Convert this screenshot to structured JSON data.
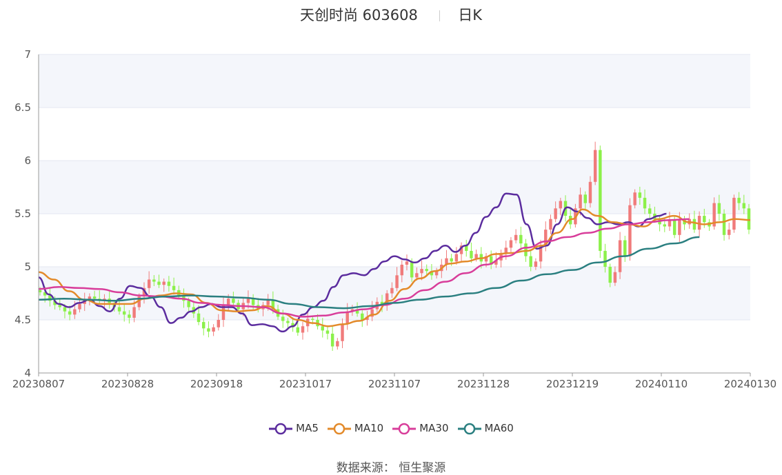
{
  "header": {
    "name": "天创时尚 603608",
    "period": "日K"
  },
  "legend": [
    {
      "name": "MA5",
      "color": "#5b2c9e"
    },
    {
      "name": "MA10",
      "color": "#e38a2a"
    },
    {
      "name": "MA30",
      "color": "#d83d9a"
    },
    {
      "name": "MA60",
      "color": "#2a7f80"
    }
  ],
  "source": {
    "label": "数据来源：",
    "value": "恒生聚源"
  },
  "chart_data": {
    "type": "candlestick",
    "y_ticks": [
      "4",
      "4.5",
      "5",
      "5.5",
      "6",
      "6.5",
      "7"
    ],
    "ylim": [
      4,
      7
    ],
    "x_ticks": [
      "20230807",
      "20230828",
      "20230918",
      "20231017",
      "20231107",
      "20231128",
      "20231219",
      "20240110",
      "20240130"
    ],
    "grid": true,
    "legend_position": "bottom",
    "up_color": "#f07b7b",
    "down_color": "#8cf04a",
    "closes": [
      4.76,
      4.73,
      4.68,
      4.64,
      4.62,
      4.58,
      4.55,
      4.6,
      4.65,
      4.69,
      4.72,
      4.7,
      4.68,
      4.7,
      4.66,
      4.62,
      4.58,
      4.55,
      4.52,
      4.62,
      4.72,
      4.8,
      4.88,
      4.86,
      4.83,
      4.86,
      4.82,
      4.78,
      4.73,
      4.68,
      4.62,
      4.56,
      4.48,
      4.42,
      4.39,
      4.43,
      4.5,
      4.64,
      4.7,
      4.66,
      4.6,
      4.66,
      4.7,
      4.64,
      4.6,
      4.64,
      4.69,
      4.6,
      4.53,
      4.49,
      4.47,
      4.43,
      4.38,
      4.44,
      4.51,
      4.5,
      4.44,
      4.4,
      4.37,
      4.25,
      4.3,
      4.46,
      4.58,
      4.6,
      4.56,
      4.5,
      4.53,
      4.6,
      4.67,
      4.64,
      4.75,
      4.8,
      4.92,
      5.02,
      5.05,
      4.9,
      4.94,
      4.98,
      4.96,
      4.92,
      4.96,
      5.02,
      5.08,
      5.05,
      5.12,
      5.2,
      5.15,
      5.08,
      5.12,
      5.05,
      5.1,
      5.02,
      5.06,
      5.12,
      5.18,
      5.25,
      5.3,
      5.22,
      5.1,
      5.0,
      5.05,
      5.2,
      5.35,
      5.45,
      5.55,
      5.62,
      5.48,
      5.4,
      5.55,
      5.68,
      5.6,
      5.8,
      6.1,
      5.15,
      5.0,
      4.85,
      4.95,
      5.25,
      5.1,
      5.58,
      5.7,
      5.65,
      5.55,
      5.5,
      5.45,
      5.4,
      5.38,
      5.44,
      5.3,
      5.45,
      5.4,
      5.45,
      5.35,
      5.48,
      5.42,
      5.38,
      5.6,
      5.5,
      5.3,
      5.35,
      5.65,
      5.6,
      5.55,
      5.35
    ],
    "series": [
      {
        "name": "MA5",
        "values": [
          [
            0,
            4.9
          ],
          [
            4,
            4.74
          ],
          [
            8,
            4.65
          ],
          [
            12,
            4.62
          ],
          [
            16,
            4.66
          ],
          [
            20,
            4.69
          ],
          [
            24,
            4.63
          ],
          [
            28,
            4.58
          ],
          [
            32,
            4.7
          ],
          [
            36,
            4.82
          ],
          [
            40,
            4.8
          ],
          [
            44,
            4.72
          ],
          [
            48,
            4.62
          ],
          [
            52,
            4.47
          ],
          [
            56,
            4.52
          ],
          [
            60,
            4.58
          ],
          [
            64,
            4.62
          ],
          [
            68,
            4.65
          ],
          [
            72,
            4.62
          ],
          [
            76,
            4.62
          ],
          [
            80,
            4.56
          ],
          [
            84,
            4.45
          ],
          [
            88,
            4.46
          ],
          [
            92,
            4.44
          ],
          [
            96,
            4.39
          ],
          [
            100,
            4.44
          ],
          [
            104,
            4.55
          ],
          [
            108,
            4.62
          ],
          [
            112,
            4.68
          ],
          [
            116,
            4.81
          ],
          [
            120,
            4.92
          ],
          [
            124,
            4.94
          ],
          [
            128,
            4.92
          ],
          [
            132,
            4.98
          ],
          [
            136,
            5.05
          ],
          [
            140,
            5.1
          ],
          [
            144,
            5.07
          ],
          [
            148,
            5.04
          ],
          [
            152,
            5.08
          ],
          [
            156,
            5.15
          ],
          [
            160,
            5.2
          ],
          [
            164,
            5.14
          ],
          [
            168,
            5.2
          ],
          [
            172,
            5.32
          ],
          [
            176,
            5.47
          ],
          [
            180,
            5.56
          ],
          [
            184,
            5.69
          ],
          [
            188,
            5.68
          ],
          [
            192,
            5.4
          ],
          [
            196,
            5.17
          ],
          [
            200,
            5.2
          ],
          [
            204,
            5.4
          ],
          [
            208,
            5.56
          ],
          [
            212,
            5.52
          ],
          [
            216,
            5.46
          ],
          [
            220,
            5.4
          ],
          [
            224,
            5.42
          ],
          [
            228,
            5.4
          ],
          [
            232,
            5.42
          ],
          [
            236,
            5.38
          ],
          [
            240,
            5.45
          ],
          [
            244,
            5.48
          ],
          [
            247,
            5.5
          ]
        ]
      },
      {
        "name": "MA10",
        "values": [
          [
            0,
            4.95
          ],
          [
            6,
            4.88
          ],
          [
            12,
            4.77
          ],
          [
            18,
            4.69
          ],
          [
            24,
            4.65
          ],
          [
            30,
            4.65
          ],
          [
            36,
            4.65
          ],
          [
            42,
            4.7
          ],
          [
            48,
            4.73
          ],
          [
            54,
            4.75
          ],
          [
            60,
            4.74
          ],
          [
            66,
            4.66
          ],
          [
            72,
            4.59
          ],
          [
            78,
            4.58
          ],
          [
            84,
            4.59
          ],
          [
            90,
            4.63
          ],
          [
            96,
            4.56
          ],
          [
            102,
            4.5
          ],
          [
            108,
            4.47
          ],
          [
            114,
            4.44
          ],
          [
            120,
            4.46
          ],
          [
            126,
            4.49
          ],
          [
            132,
            4.55
          ],
          [
            138,
            4.68
          ],
          [
            144,
            4.79
          ],
          [
            150,
            4.89
          ],
          [
            156,
            4.96
          ],
          [
            162,
            5.03
          ],
          [
            168,
            5.05
          ],
          [
            174,
            5.08
          ],
          [
            180,
            5.12
          ],
          [
            186,
            5.13
          ],
          [
            192,
            5.15
          ],
          [
            198,
            5.2
          ],
          [
            204,
            5.32
          ],
          [
            210,
            5.45
          ],
          [
            214,
            5.54
          ],
          [
            220,
            5.48
          ],
          [
            226,
            5.42
          ],
          [
            232,
            5.4
          ],
          [
            238,
            5.38
          ],
          [
            244,
            5.45
          ],
          [
            250,
            5.48
          ],
          [
            256,
            5.42
          ],
          [
            262,
            5.4
          ],
          [
            268,
            5.42
          ],
          [
            274,
            5.45
          ],
          [
            280,
            5.44
          ]
        ]
      },
      {
        "name": "MA30",
        "values": [
          [
            0,
            4.79
          ],
          [
            8,
            4.81
          ],
          [
            16,
            4.8
          ],
          [
            24,
            4.79
          ],
          [
            32,
            4.76
          ],
          [
            40,
            4.73
          ],
          [
            48,
            4.72
          ],
          [
            56,
            4.7
          ],
          [
            64,
            4.66
          ],
          [
            72,
            4.64
          ],
          [
            80,
            4.63
          ],
          [
            88,
            4.62
          ],
          [
            96,
            4.56
          ],
          [
            104,
            4.53
          ],
          [
            112,
            4.54
          ],
          [
            120,
            4.57
          ],
          [
            128,
            4.6
          ],
          [
            136,
            4.64
          ],
          [
            144,
            4.7
          ],
          [
            152,
            4.78
          ],
          [
            160,
            4.86
          ],
          [
            168,
            4.94
          ],
          [
            176,
            5.02
          ],
          [
            184,
            5.1
          ],
          [
            192,
            5.18
          ],
          [
            200,
            5.24
          ],
          [
            208,
            5.28
          ],
          [
            216,
            5.32
          ],
          [
            224,
            5.36
          ],
          [
            232,
            5.4
          ],
          [
            240,
            5.42
          ],
          [
            248,
            5.44
          ],
          [
            256,
            5.45
          ]
        ]
      },
      {
        "name": "MA60",
        "values": [
          [
            0,
            4.69
          ],
          [
            10,
            4.7
          ],
          [
            20,
            4.69
          ],
          [
            30,
            4.68
          ],
          [
            40,
            4.7
          ],
          [
            50,
            4.72
          ],
          [
            60,
            4.73
          ],
          [
            70,
            4.72
          ],
          [
            80,
            4.71
          ],
          [
            90,
            4.69
          ],
          [
            100,
            4.65
          ],
          [
            110,
            4.62
          ],
          [
            120,
            4.61
          ],
          [
            130,
            4.63
          ],
          [
            140,
            4.66
          ],
          [
            150,
            4.69
          ],
          [
            160,
            4.72
          ],
          [
            170,
            4.75
          ],
          [
            180,
            4.8
          ],
          [
            190,
            4.87
          ],
          [
            200,
            4.93
          ],
          [
            210,
            4.97
          ],
          [
            220,
            5.04
          ],
          [
            230,
            5.1
          ],
          [
            240,
            5.17
          ],
          [
            250,
            5.22
          ],
          [
            260,
            5.28
          ]
        ]
      }
    ]
  }
}
